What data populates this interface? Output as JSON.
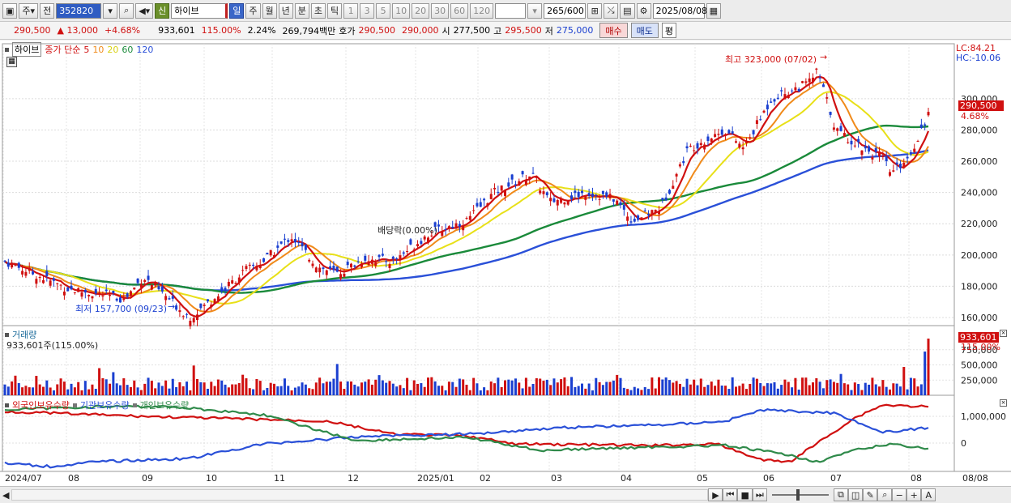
{
  "toolbar": {
    "period_main": "주",
    "prev_label": "전",
    "code": "352820",
    "shin_label": "신",
    "stock_name": "하이브",
    "periods": [
      "일",
      "주",
      "월",
      "년",
      "분",
      "초",
      "틱"
    ],
    "active_period": "일",
    "intervals": [
      "1",
      "3",
      "5",
      "10",
      "20",
      "30",
      "60",
      "120"
    ],
    "count_current": "265",
    "count_total": "/600",
    "date": "2025/08/08"
  },
  "quote": {
    "price": "290,500",
    "change": "▲ 13,000",
    "change_pct": "+4.68%",
    "volume": "933,601",
    "volume_ratio": "115.00%",
    "turnover_rate": "2.24%",
    "amount": "269,794백만",
    "ask_label": "호가",
    "ask": "290,500",
    "bid": "290,000",
    "open_label": "시",
    "open": "277,500",
    "high_label": "고",
    "high": "295,500",
    "low_label": "저",
    "low": "275,000",
    "buy_label": "매수",
    "sell_label": "매도",
    "avg_label": "평"
  },
  "price_panel": {
    "stock": "하이브",
    "ma_label": "종가 단순",
    "ma_periods": [
      "5",
      "10",
      "20",
      "60",
      "120"
    ],
    "ma_colors": [
      "#d01010",
      "#f08a1a",
      "#e8e018",
      "#1a8a3a",
      "#2a50d8"
    ],
    "lc": "LC:84.21",
    "hc": "HC:-10.06",
    "high_note": "최고 323,000 (07/02)",
    "low_note": "최저 157,700 (09/23)",
    "dividend_note": "배당락(0.00%)",
    "last_price": "290,500",
    "last_pct": "4.68%",
    "y_ticks": [
      "300,000",
      "280,000",
      "260,000",
      "240,000",
      "220,000",
      "200,000",
      "180,000",
      "160,000"
    ]
  },
  "volume_panel": {
    "title": "거래량",
    "value": "933,601주(115.00%)",
    "last_value": "933,601",
    "last_pct": "115.00%",
    "y_ticks": [
      "750,000",
      "500,000",
      "250,000"
    ]
  },
  "holding_panel": {
    "series": [
      "외국인보유수량",
      "기관보유수량",
      "개인보유수량"
    ],
    "series_colors": [
      "#d01010",
      "#2a50d8",
      "#2f8a4a"
    ],
    "y_ticks": [
      "1,000,000",
      "0"
    ]
  },
  "x_axis": {
    "labels": [
      "2024/07",
      "08",
      "09",
      "10",
      "11",
      "12",
      "2025/01",
      "02",
      "03",
      "04",
      "05",
      "06",
      "07",
      "08"
    ],
    "end_label": "08/08"
  }
}
